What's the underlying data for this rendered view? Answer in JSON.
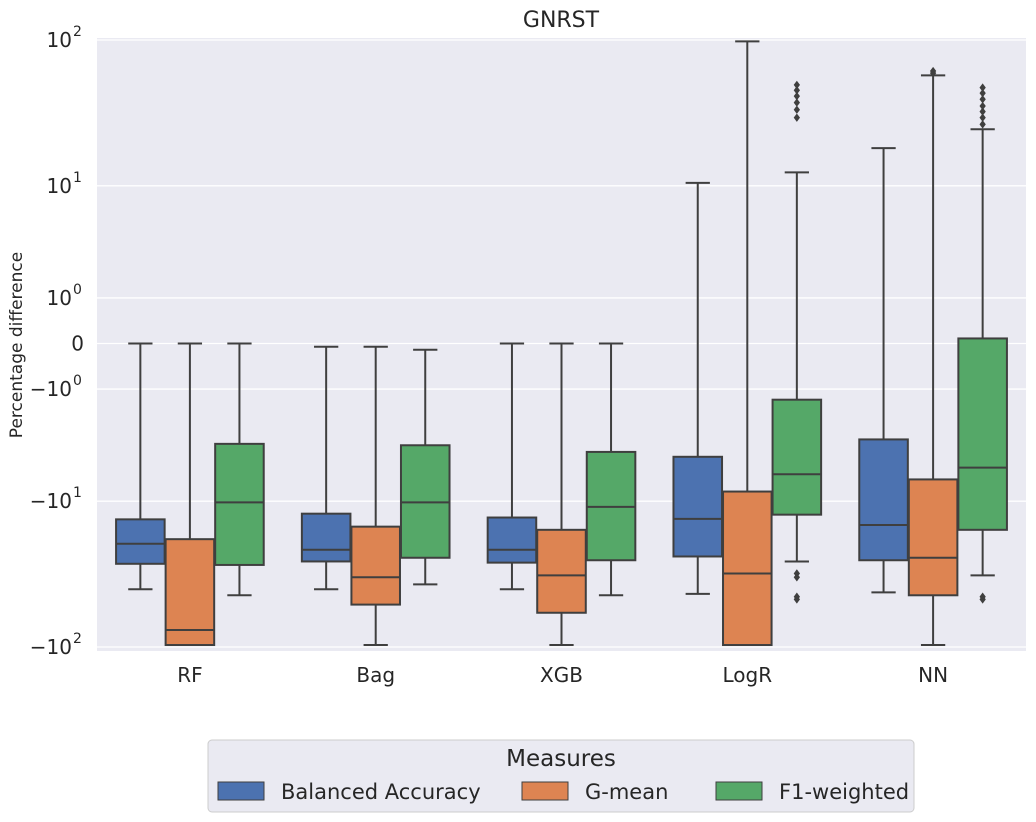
{
  "chart_data": {
    "type": "box",
    "title": "GNRST",
    "ylabel": "Percentage difference",
    "xlabel": "",
    "y_scale": "symlog",
    "ylim": [
      -100,
      100
    ],
    "grid": true,
    "y_ticks": [
      {
        "base": "10",
        "exp": "2",
        "value": 100
      },
      {
        "base": "10",
        "exp": "1",
        "value": 10
      },
      {
        "base": "10",
        "exp": "0",
        "value": 1
      },
      {
        "base": "0",
        "exp": "",
        "value": 0
      },
      {
        "base": "−10",
        "exp": "0",
        "value": -1
      },
      {
        "base": "−10",
        "exp": "1",
        "value": -10
      },
      {
        "base": "−10",
        "exp": "2",
        "value": -100
      }
    ],
    "categories": [
      "RF",
      "Bag",
      "XGB",
      "LogR",
      "NN"
    ],
    "legend": {
      "title": "Measures",
      "placement": "bottom-center",
      "entries": [
        "Balanced Accuracy",
        "G-mean",
        "F1-weighted"
      ]
    },
    "series": [
      {
        "name": "Balanced Accuracy",
        "color": "#4c72b0",
        "boxes": [
          {
            "whislo": -41,
            "q1": -27.5,
            "med": -20,
            "q3": -13.5,
            "whishi": 0,
            "fliers": []
          },
          {
            "whislo": -41,
            "q1": -26.5,
            "med": -22,
            "q3": -12.3,
            "whishi": -0.05,
            "fliers": []
          },
          {
            "whislo": -41,
            "q1": -27,
            "med": -22,
            "q3": -13.1,
            "whishi": 0,
            "fliers": []
          },
          {
            "whislo": -44,
            "q1": -24.5,
            "med": -13.4,
            "q3": -4.6,
            "whishi": 10.5,
            "fliers": []
          },
          {
            "whislo": -43,
            "q1": -26,
            "med": -14.8,
            "q3": -3.3,
            "whishi": 18.5,
            "fliers": []
          }
        ]
      },
      {
        "name": "G-mean",
        "color": "#dd8452",
        "boxes": [
          {
            "whislo": -97,
            "q1": -97,
            "med": -77,
            "q3": -18.6,
            "whishi": 0,
            "fliers": []
          },
          {
            "whislo": -97,
            "q1": -52,
            "med": -34,
            "q3": -15.2,
            "whishi": -0.05,
            "fliers": []
          },
          {
            "whislo": -97,
            "q1": -59,
            "med": -33,
            "q3": -16,
            "whishi": 0,
            "fliers": []
          },
          {
            "whislo": -97,
            "q1": -97,
            "med": -32,
            "q3": -8.5,
            "whishi": 98,
            "fliers": []
          },
          {
            "whislo": -97,
            "q1": -45,
            "med": -25,
            "q3": -6.9,
            "whishi": 58,
            "fliers": [
              62,
              60
            ]
          }
        ]
      },
      {
        "name": "F1-weighted",
        "color": "#55a868",
        "boxes": [
          {
            "whislo": -45,
            "q1": -28,
            "med": -10.2,
            "q3": -3.6,
            "whishi": 0,
            "fliers": []
          },
          {
            "whislo": -38,
            "q1": -25,
            "med": -10.2,
            "q3": -3.7,
            "whishi": -0.1,
            "fliers": []
          },
          {
            "whislo": -45,
            "q1": -26,
            "med": -11,
            "q3": -4.2,
            "whishi": 0,
            "fliers": []
          },
          {
            "whislo": -26.5,
            "q1": -12.5,
            "med": -6.3,
            "q3": -1.35,
            "whishi": 12.5,
            "fliers": [
              -32,
              -34,
              -46,
              -48,
              30,
              34,
              38,
              42,
              46,
              50
            ]
          },
          {
            "whislo": -33,
            "q1": -16,
            "med": -5.6,
            "q3": 0.08,
            "whishi": 25,
            "fliers": [
              -46,
              -48,
              27,
              30,
              33,
              36,
              40,
              44,
              48
            ]
          }
        ]
      }
    ]
  }
}
